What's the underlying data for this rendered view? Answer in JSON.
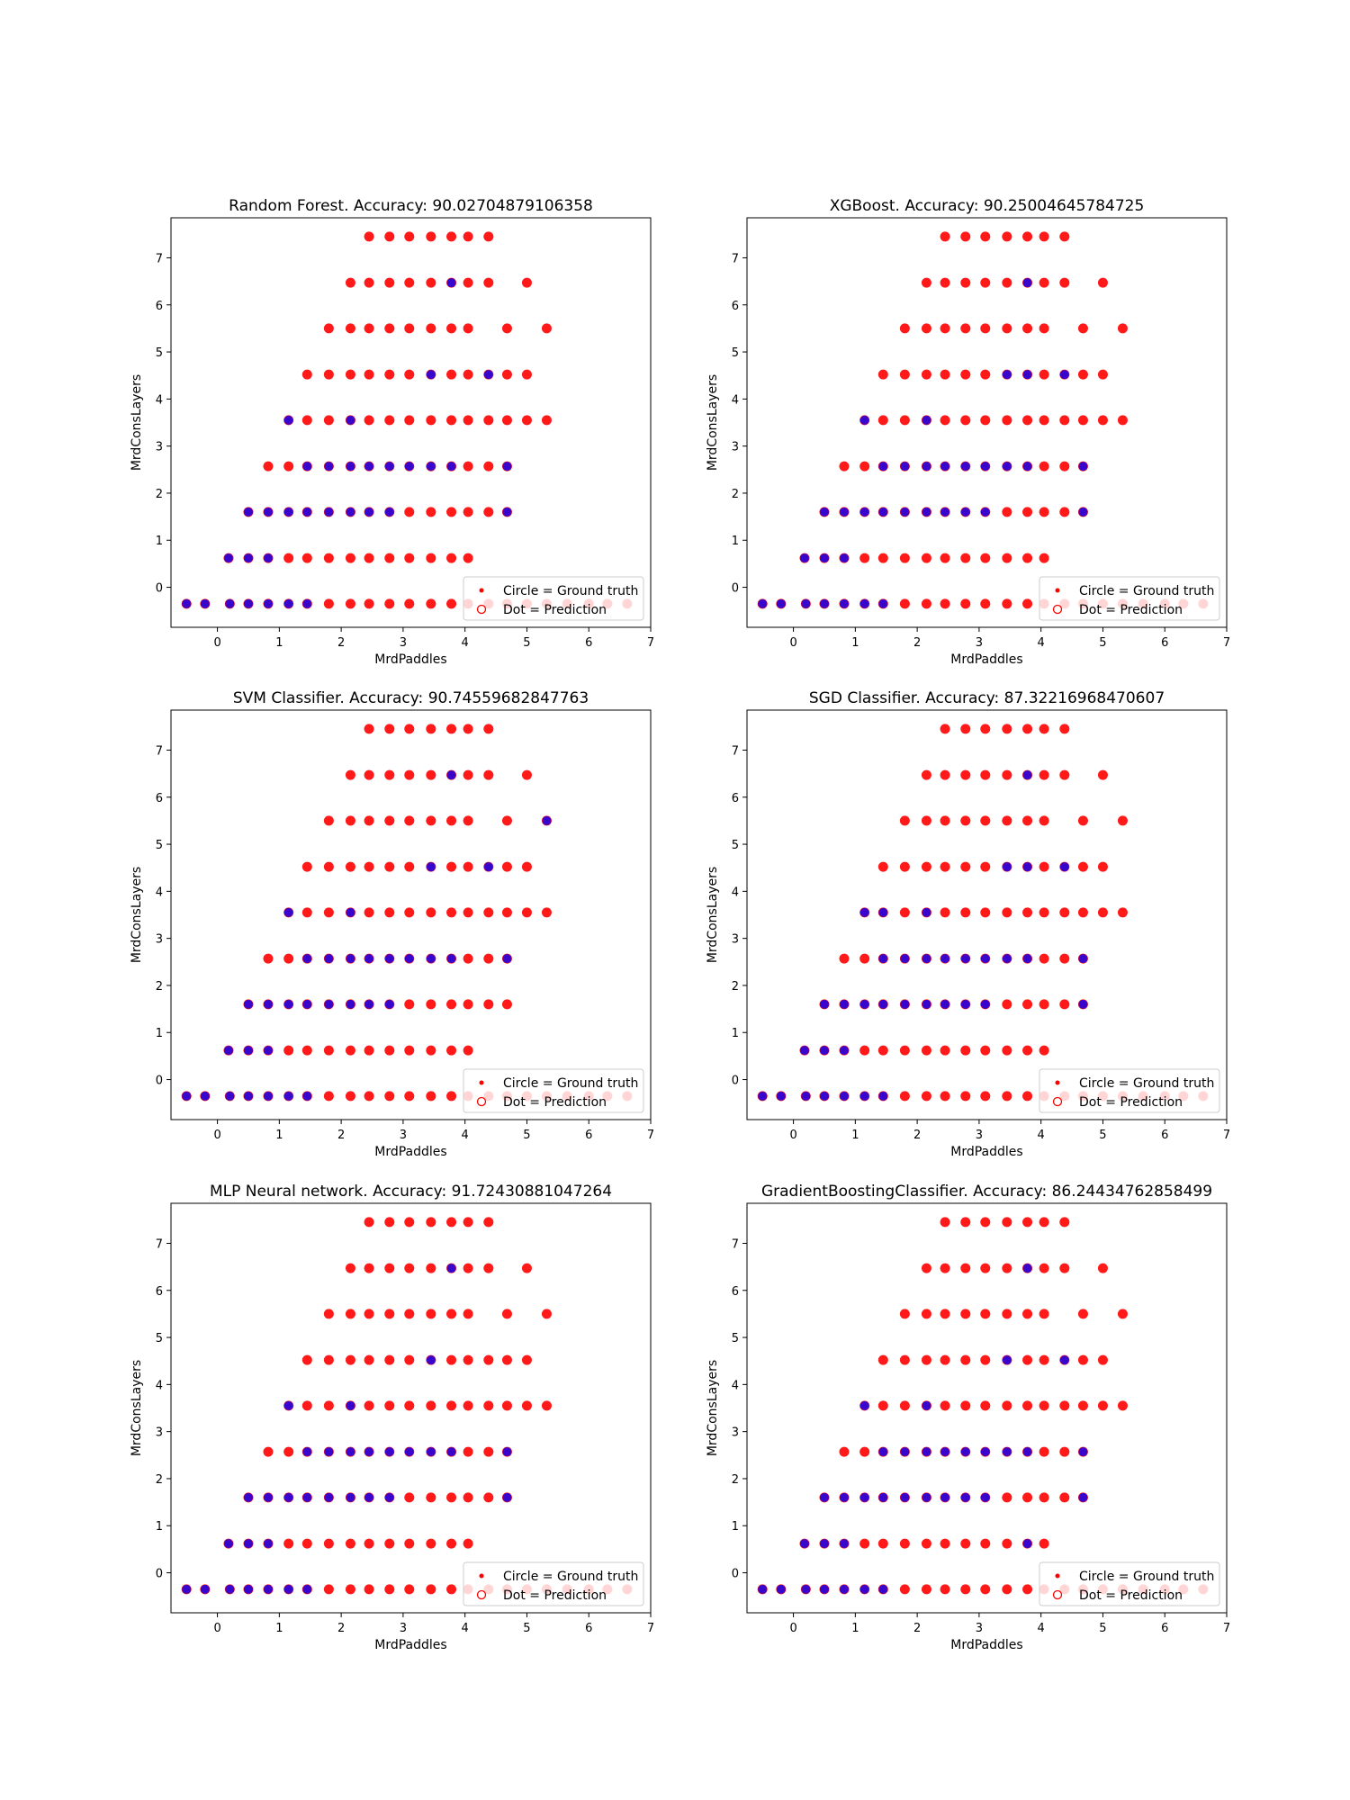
{
  "figure": {
    "colors": {
      "ground_truth": "#ff0000",
      "prediction_class_0": "#ff0000",
      "prediction_class_1": "#0000ff",
      "axes": "#000000"
    }
  },
  "chart_data": [
    {
      "type": "scatter",
      "title": "Random Forest. Accuracy: 90.02704879106358",
      "xlabel": "MrdPaddles",
      "ylabel": "MrdConsLayers",
      "xticks": [
        "0",
        "1",
        "2",
        "3",
        "4",
        "5",
        "6",
        "7"
      ],
      "yticks": [
        "0",
        "1",
        "2",
        "3",
        "4",
        "5",
        "6",
        "7"
      ],
      "xlim": [
        -0.75,
        7.0
      ],
      "ylim": [
        -0.85,
        7.85
      ],
      "legend": {
        "placement": "lower-right",
        "entries": [
          "Circle = Ground truth",
          "Dot = Prediction"
        ]
      },
      "blue_points": [
        [
          -0.5,
          -0.35
        ],
        [
          -0.2,
          -0.35
        ],
        [
          0.2,
          -0.35
        ],
        [
          0.5,
          -0.35
        ],
        [
          0.82,
          -0.35
        ],
        [
          1.15,
          -0.35
        ],
        [
          1.45,
          -0.35
        ],
        [
          0.18,
          0.62
        ],
        [
          0.5,
          0.62
        ],
        [
          0.82,
          0.62
        ],
        [
          0.5,
          1.6
        ],
        [
          0.82,
          1.6
        ],
        [
          1.15,
          1.6
        ],
        [
          1.45,
          1.6
        ],
        [
          1.8,
          1.6
        ],
        [
          2.15,
          1.6
        ],
        [
          2.45,
          1.6
        ],
        [
          2.78,
          1.6
        ],
        [
          1.45,
          2.57
        ],
        [
          1.8,
          2.57
        ],
        [
          2.15,
          2.57
        ],
        [
          2.45,
          2.57
        ],
        [
          2.78,
          2.57
        ],
        [
          3.1,
          2.57
        ],
        [
          3.45,
          2.57
        ],
        [
          3.78,
          2.57
        ],
        [
          1.15,
          3.55
        ],
        [
          2.15,
          3.55
        ],
        [
          3.45,
          4.52
        ],
        [
          4.38,
          4.52
        ],
        [
          3.78,
          6.47
        ],
        [
          4.68,
          1.6
        ],
        [
          4.68,
          2.57
        ]
      ]
    },
    {
      "type": "scatter",
      "title": "XGBoost. Accuracy: 90.25004645784725",
      "xlabel": "MrdPaddles",
      "ylabel": "MrdConsLayers",
      "xticks": [
        "0",
        "1",
        "2",
        "3",
        "4",
        "5",
        "6",
        "7"
      ],
      "yticks": [
        "0",
        "1",
        "2",
        "3",
        "4",
        "5",
        "6",
        "7"
      ],
      "xlim": [
        -0.75,
        7.0
      ],
      "ylim": [
        -0.85,
        7.85
      ],
      "legend": {
        "placement": "lower-right",
        "entries": [
          "Circle = Ground truth",
          "Dot = Prediction"
        ]
      },
      "blue_points": [
        [
          -0.5,
          -0.35
        ],
        [
          -0.2,
          -0.35
        ],
        [
          0.2,
          -0.35
        ],
        [
          0.5,
          -0.35
        ],
        [
          0.82,
          -0.35
        ],
        [
          1.15,
          -0.35
        ],
        [
          1.45,
          -0.35
        ],
        [
          0.18,
          0.62
        ],
        [
          0.5,
          0.62
        ],
        [
          0.82,
          0.62
        ],
        [
          0.5,
          1.6
        ],
        [
          0.82,
          1.6
        ],
        [
          1.15,
          1.6
        ],
        [
          1.45,
          1.6
        ],
        [
          1.8,
          1.6
        ],
        [
          2.15,
          1.6
        ],
        [
          2.45,
          1.6
        ],
        [
          2.78,
          1.6
        ],
        [
          3.1,
          1.6
        ],
        [
          1.45,
          2.57
        ],
        [
          1.8,
          2.57
        ],
        [
          2.15,
          2.57
        ],
        [
          2.45,
          2.57
        ],
        [
          2.78,
          2.57
        ],
        [
          3.1,
          2.57
        ],
        [
          3.45,
          2.57
        ],
        [
          3.78,
          2.57
        ],
        [
          1.15,
          3.55
        ],
        [
          2.15,
          3.55
        ],
        [
          3.45,
          4.52
        ],
        [
          3.78,
          4.52
        ],
        [
          4.38,
          4.52
        ],
        [
          3.78,
          6.47
        ],
        [
          4.68,
          1.6
        ],
        [
          4.68,
          2.57
        ]
      ]
    },
    {
      "type": "scatter",
      "title": "SVM Classifier. Accuracy: 90.74559682847763",
      "xlabel": "MrdPaddles",
      "ylabel": "MrdConsLayers",
      "xticks": [
        "0",
        "1",
        "2",
        "3",
        "4",
        "5",
        "6",
        "7"
      ],
      "yticks": [
        "0",
        "1",
        "2",
        "3",
        "4",
        "5",
        "6",
        "7"
      ],
      "xlim": [
        -0.75,
        7.0
      ],
      "ylim": [
        -0.85,
        7.85
      ],
      "legend": {
        "placement": "lower-right",
        "entries": [
          "Circle = Ground truth",
          "Dot = Prediction"
        ]
      },
      "blue_points": [
        [
          -0.5,
          -0.35
        ],
        [
          -0.2,
          -0.35
        ],
        [
          0.2,
          -0.35
        ],
        [
          0.5,
          -0.35
        ],
        [
          0.82,
          -0.35
        ],
        [
          1.15,
          -0.35
        ],
        [
          1.45,
          -0.35
        ],
        [
          0.18,
          0.62
        ],
        [
          0.5,
          0.62
        ],
        [
          0.82,
          0.62
        ],
        [
          0.5,
          1.6
        ],
        [
          0.82,
          1.6
        ],
        [
          1.15,
          1.6
        ],
        [
          1.45,
          1.6
        ],
        [
          1.8,
          1.6
        ],
        [
          2.15,
          1.6
        ],
        [
          2.45,
          1.6
        ],
        [
          2.78,
          1.6
        ],
        [
          1.45,
          2.57
        ],
        [
          1.8,
          2.57
        ],
        [
          2.15,
          2.57
        ],
        [
          2.45,
          2.57
        ],
        [
          2.78,
          2.57
        ],
        [
          3.1,
          2.57
        ],
        [
          3.45,
          2.57
        ],
        [
          3.78,
          2.57
        ],
        [
          1.15,
          3.55
        ],
        [
          2.15,
          3.55
        ],
        [
          3.45,
          4.52
        ],
        [
          4.38,
          4.52
        ],
        [
          3.78,
          6.47
        ],
        [
          4.68,
          2.57
        ],
        [
          5.32,
          5.5
        ]
      ]
    },
    {
      "type": "scatter",
      "title": "SGD Classifier. Accuracy: 87.32216968470607",
      "xlabel": "MrdPaddles",
      "ylabel": "MrdConsLayers",
      "xticks": [
        "0",
        "1",
        "2",
        "3",
        "4",
        "5",
        "6",
        "7"
      ],
      "yticks": [
        "0",
        "1",
        "2",
        "3",
        "4",
        "5",
        "6",
        "7"
      ],
      "xlim": [
        -0.75,
        7.0
      ],
      "ylim": [
        -0.85,
        7.85
      ],
      "legend": {
        "placement": "lower-right",
        "entries": [
          "Circle = Ground truth",
          "Dot = Prediction"
        ]
      },
      "blue_points": [
        [
          -0.5,
          -0.35
        ],
        [
          -0.2,
          -0.35
        ],
        [
          0.2,
          -0.35
        ],
        [
          0.5,
          -0.35
        ],
        [
          0.82,
          -0.35
        ],
        [
          1.15,
          -0.35
        ],
        [
          1.45,
          -0.35
        ],
        [
          0.18,
          0.62
        ],
        [
          0.5,
          0.62
        ],
        [
          0.82,
          0.62
        ],
        [
          0.5,
          1.6
        ],
        [
          0.82,
          1.6
        ],
        [
          1.15,
          1.6
        ],
        [
          1.45,
          1.6
        ],
        [
          1.8,
          1.6
        ],
        [
          2.15,
          1.6
        ],
        [
          2.45,
          1.6
        ],
        [
          2.78,
          1.6
        ],
        [
          3.1,
          1.6
        ],
        [
          1.45,
          2.57
        ],
        [
          1.8,
          2.57
        ],
        [
          2.15,
          2.57
        ],
        [
          2.45,
          2.57
        ],
        [
          2.78,
          2.57
        ],
        [
          3.1,
          2.57
        ],
        [
          3.45,
          2.57
        ],
        [
          3.78,
          2.57
        ],
        [
          1.15,
          3.55
        ],
        [
          1.45,
          3.55
        ],
        [
          2.15,
          3.55
        ],
        [
          3.45,
          4.52
        ],
        [
          3.78,
          4.52
        ],
        [
          4.38,
          4.52
        ],
        [
          3.78,
          6.47
        ],
        [
          4.68,
          1.6
        ],
        [
          4.68,
          2.57
        ]
      ]
    },
    {
      "type": "scatter",
      "title": "MLP Neural network. Accuracy: 91.72430881047264",
      "xlabel": "MrdPaddles",
      "ylabel": "MrdConsLayers",
      "xticks": [
        "0",
        "1",
        "2",
        "3",
        "4",
        "5",
        "6",
        "7"
      ],
      "yticks": [
        "0",
        "1",
        "2",
        "3",
        "4",
        "5",
        "6",
        "7"
      ],
      "xlim": [
        -0.75,
        7.0
      ],
      "ylim": [
        -0.85,
        7.85
      ],
      "legend": {
        "placement": "lower-right",
        "entries": [
          "Circle = Ground truth",
          "Dot = Prediction"
        ]
      },
      "blue_points": [
        [
          -0.5,
          -0.35
        ],
        [
          -0.2,
          -0.35
        ],
        [
          0.2,
          -0.35
        ],
        [
          0.5,
          -0.35
        ],
        [
          0.82,
          -0.35
        ],
        [
          1.15,
          -0.35
        ],
        [
          1.45,
          -0.35
        ],
        [
          0.18,
          0.62
        ],
        [
          0.5,
          0.62
        ],
        [
          0.82,
          0.62
        ],
        [
          0.5,
          1.6
        ],
        [
          0.82,
          1.6
        ],
        [
          1.15,
          1.6
        ],
        [
          1.45,
          1.6
        ],
        [
          1.8,
          1.6
        ],
        [
          2.15,
          1.6
        ],
        [
          2.45,
          1.6
        ],
        [
          2.78,
          1.6
        ],
        [
          1.45,
          2.57
        ],
        [
          1.8,
          2.57
        ],
        [
          2.15,
          2.57
        ],
        [
          2.45,
          2.57
        ],
        [
          2.78,
          2.57
        ],
        [
          3.1,
          2.57
        ],
        [
          3.45,
          2.57
        ],
        [
          3.78,
          2.57
        ],
        [
          1.15,
          3.55
        ],
        [
          2.15,
          3.55
        ],
        [
          3.45,
          4.52
        ],
        [
          3.78,
          6.47
        ],
        [
          4.68,
          1.6
        ],
        [
          4.68,
          2.57
        ]
      ]
    },
    {
      "type": "scatter",
      "title": "GradientBoostingClassifier. Accuracy: 86.24434762858499",
      "xlabel": "MrdPaddles",
      "ylabel": "MrdConsLayers",
      "xticks": [
        "0",
        "1",
        "2",
        "3",
        "4",
        "5",
        "6",
        "7"
      ],
      "yticks": [
        "0",
        "1",
        "2",
        "3",
        "4",
        "5",
        "6",
        "7"
      ],
      "xlim": [
        -0.75,
        7.0
      ],
      "ylim": [
        -0.85,
        7.85
      ],
      "legend": {
        "placement": "lower-right",
        "entries": [
          "Circle = Ground truth",
          "Dot = Prediction"
        ]
      },
      "blue_points": [
        [
          -0.5,
          -0.35
        ],
        [
          -0.2,
          -0.35
        ],
        [
          0.2,
          -0.35
        ],
        [
          0.5,
          -0.35
        ],
        [
          0.82,
          -0.35
        ],
        [
          1.15,
          -0.35
        ],
        [
          1.45,
          -0.35
        ],
        [
          0.18,
          0.62
        ],
        [
          0.5,
          0.62
        ],
        [
          0.82,
          0.62
        ],
        [
          3.78,
          0.62
        ],
        [
          0.5,
          1.6
        ],
        [
          0.82,
          1.6
        ],
        [
          1.15,
          1.6
        ],
        [
          1.45,
          1.6
        ],
        [
          1.8,
          1.6
        ],
        [
          2.15,
          1.6
        ],
        [
          2.45,
          1.6
        ],
        [
          2.78,
          1.6
        ],
        [
          3.1,
          1.6
        ],
        [
          1.45,
          2.57
        ],
        [
          1.8,
          2.57
        ],
        [
          2.15,
          2.57
        ],
        [
          2.45,
          2.57
        ],
        [
          2.78,
          2.57
        ],
        [
          3.1,
          2.57
        ],
        [
          3.45,
          2.57
        ],
        [
          3.78,
          2.57
        ],
        [
          1.15,
          3.55
        ],
        [
          2.15,
          3.55
        ],
        [
          3.45,
          4.52
        ],
        [
          4.38,
          4.52
        ],
        [
          3.78,
          6.47
        ],
        [
          4.68,
          1.6
        ],
        [
          4.68,
          2.57
        ]
      ]
    }
  ],
  "ground_truth_points": {
    "y_levels": [
      -0.35,
      0.62,
      1.6,
      2.57,
      3.55,
      4.52,
      5.5,
      6.47,
      7.45
    ],
    "rows": [
      [
        -0.5,
        -0.2,
        0.2,
        0.5,
        0.82,
        1.15,
        1.45,
        1.8,
        2.15,
        2.45,
        2.78,
        3.1,
        3.45,
        3.78,
        4.05,
        4.38,
        4.68,
        5.0,
        5.32,
        5.65,
        6.0,
        6.3,
        6.62
      ],
      [
        0.18,
        0.5,
        0.82,
        1.15,
        1.45,
        1.8,
        2.15,
        2.45,
        2.78,
        3.1,
        3.45,
        3.78,
        4.05
      ],
      [
        0.5,
        0.82,
        1.15,
        1.45,
        1.8,
        2.15,
        2.45,
        2.78,
        3.1,
        3.45,
        3.78,
        4.05,
        4.38,
        4.68
      ],
      [
        0.82,
        1.15,
        1.45,
        1.8,
        2.15,
        2.45,
        2.78,
        3.1,
        3.45,
        3.78,
        4.05,
        4.38,
        4.68
      ],
      [
        1.15,
        1.45,
        1.8,
        2.15,
        2.45,
        2.78,
        3.1,
        3.45,
        3.78,
        4.05,
        4.38,
        4.68,
        5.0,
        5.32
      ],
      [
        1.45,
        1.8,
        2.15,
        2.45,
        2.78,
        3.1,
        3.45,
        3.78,
        4.05,
        4.38,
        4.68,
        5.0
      ],
      [
        1.8,
        2.15,
        2.45,
        2.78,
        3.1,
        3.45,
        3.78,
        4.05,
        4.68,
        5.32
      ],
      [
        2.15,
        2.45,
        2.78,
        3.1,
        3.45,
        3.78,
        4.05,
        4.38,
        5.0
      ],
      [
        2.45,
        2.78,
        3.1,
        3.45,
        3.78,
        4.05,
        4.38
      ]
    ]
  }
}
